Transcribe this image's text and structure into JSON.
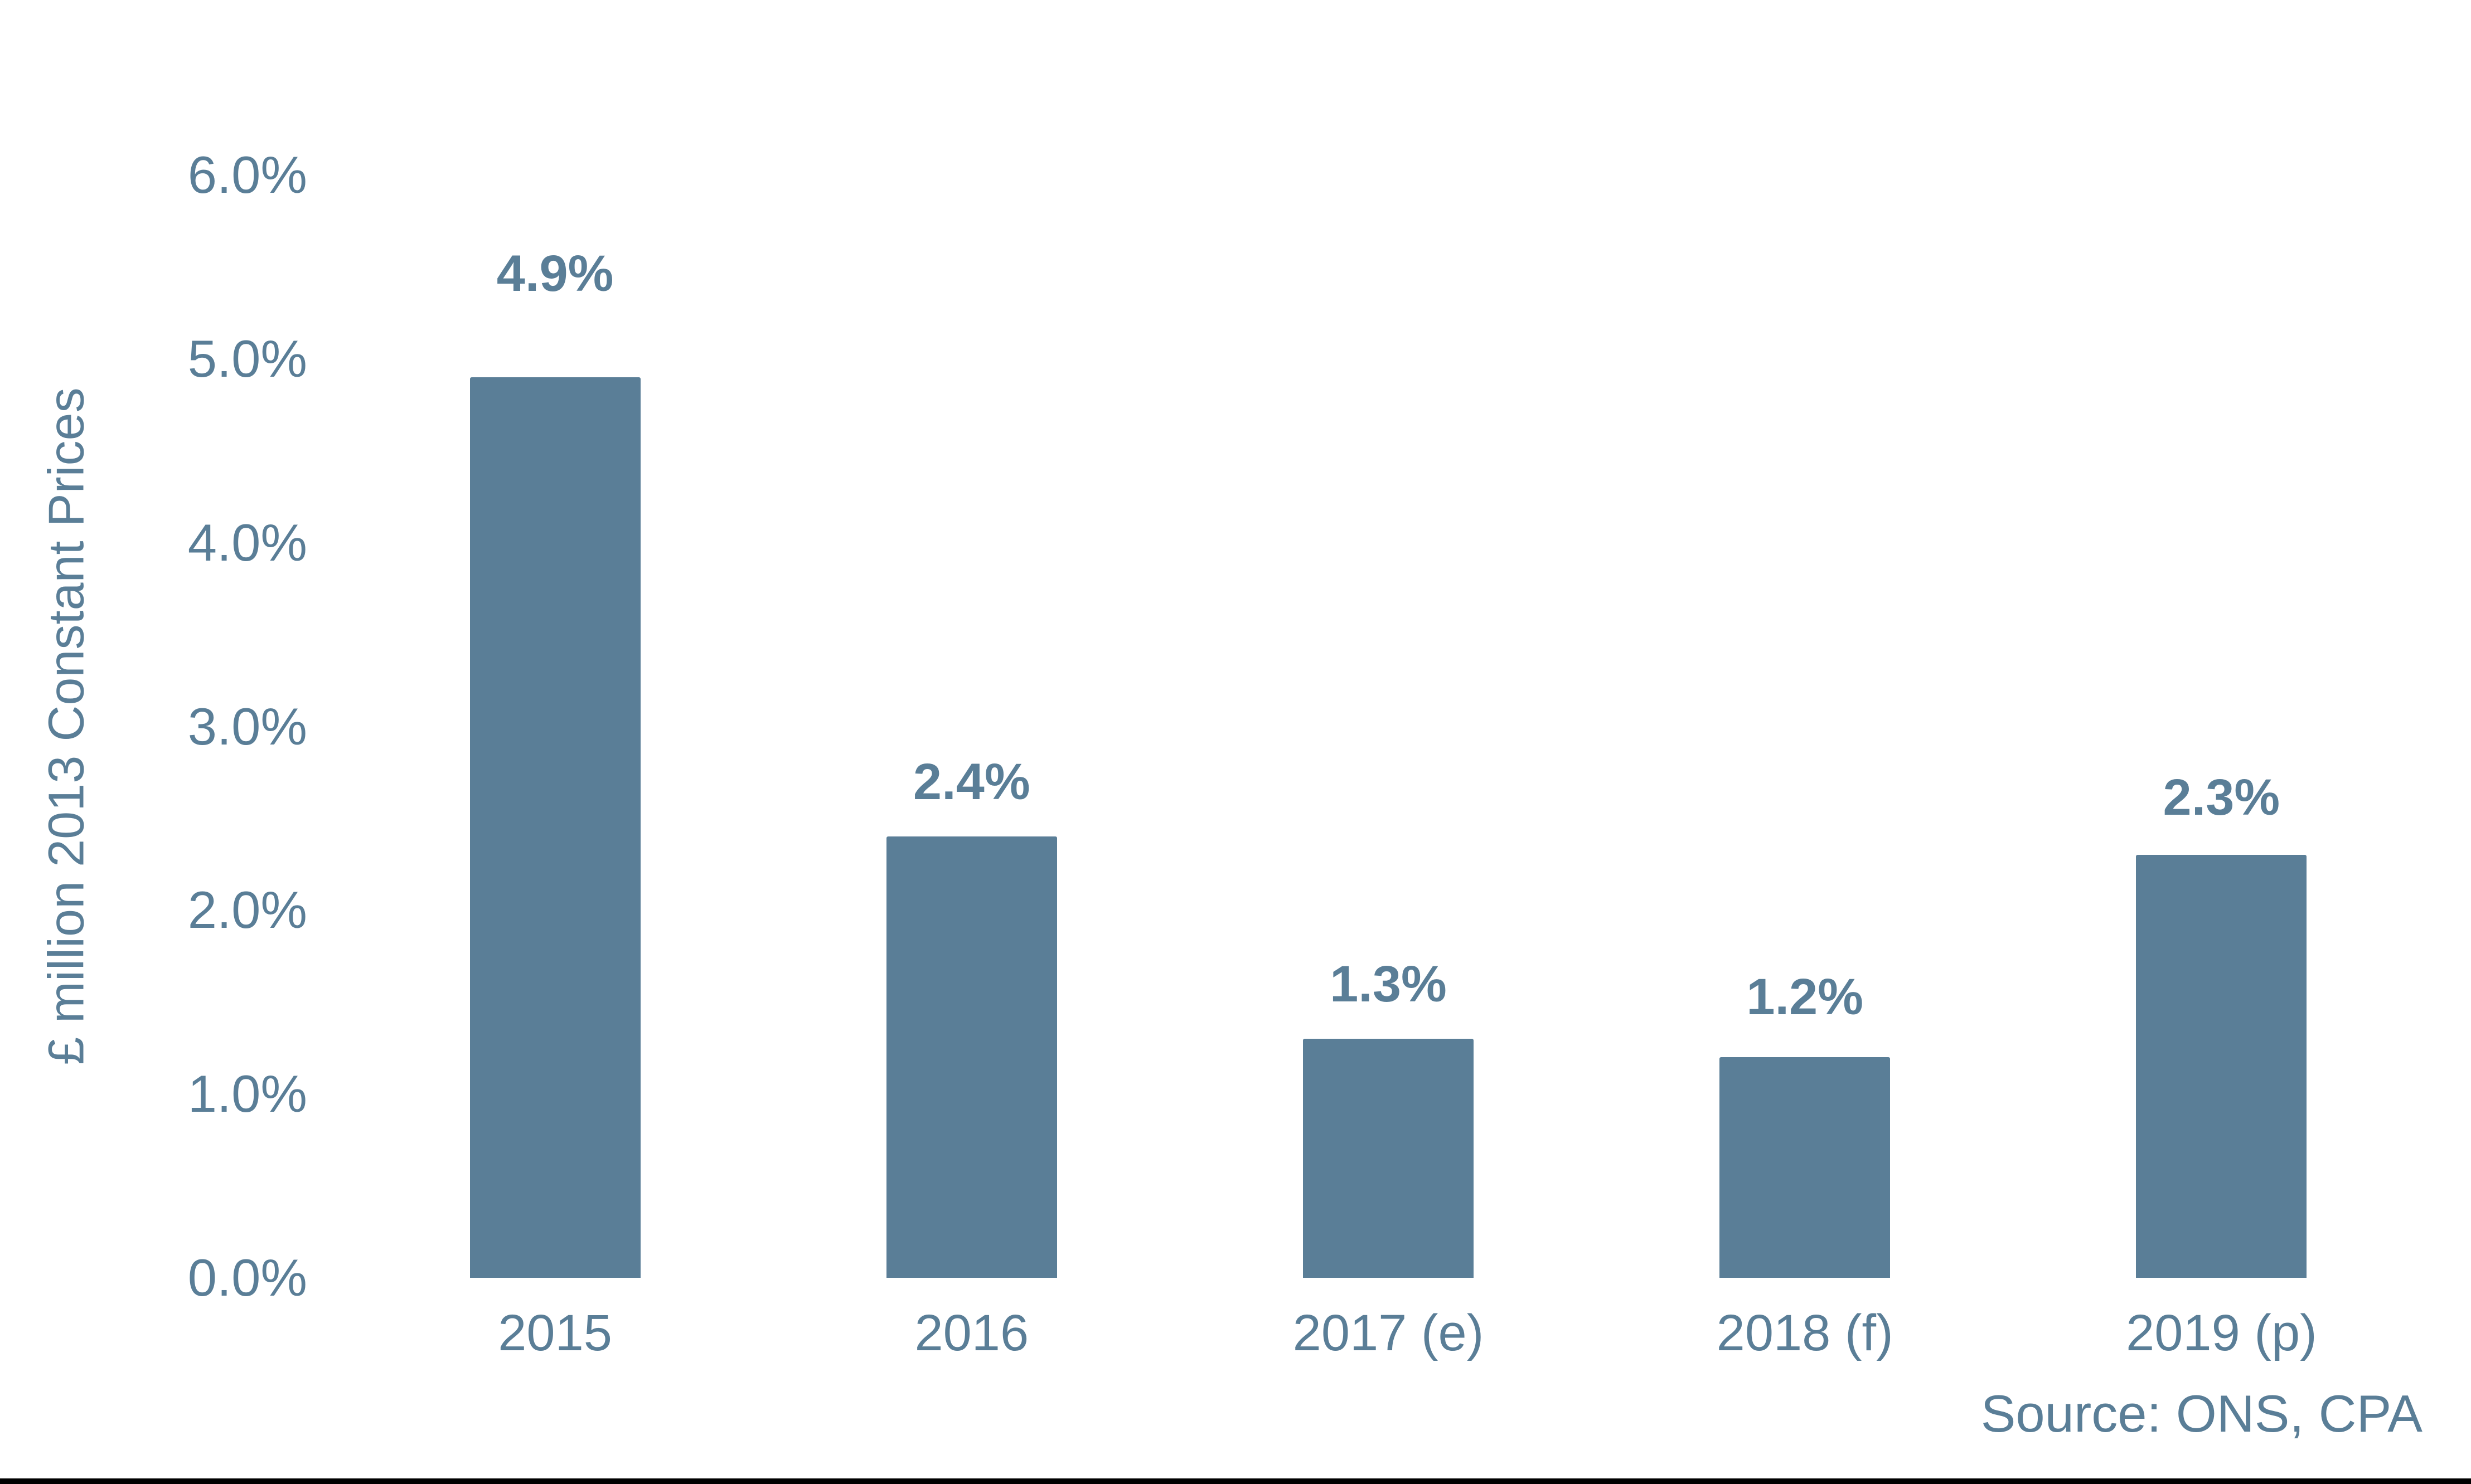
{
  "chart_data": {
    "type": "bar",
    "categories": [
      "2015",
      "2016",
      "2017 (e)",
      "2018 (f)",
      "2019 (p)"
    ],
    "values": [
      4.9,
      2.4,
      1.3,
      1.2,
      2.3
    ],
    "bar_labels": [
      "4.9%",
      "2.4%",
      "1.3%",
      "1.2%",
      "2.3%"
    ],
    "title": "",
    "xlabel": "",
    "ylabel": "£ million 2013 Constant Prices",
    "ylim": [
      0,
      6
    ],
    "ytick_values": [
      0,
      1,
      2,
      3,
      4,
      5,
      6
    ],
    "ytick_labels": [
      "0.0%",
      "1.0%",
      "2.0%",
      "3.0%",
      "4.0%",
      "5.0%",
      "6.0%"
    ],
    "grid": false,
    "legend": "none",
    "axis_lines": "none",
    "bar_color": "#5A7E97",
    "text_color": "#5A7E97"
  },
  "source_note": "Source: ONS, CPA",
  "colors": {
    "background": "#FFFFFF",
    "bottom_border": "#000000"
  }
}
